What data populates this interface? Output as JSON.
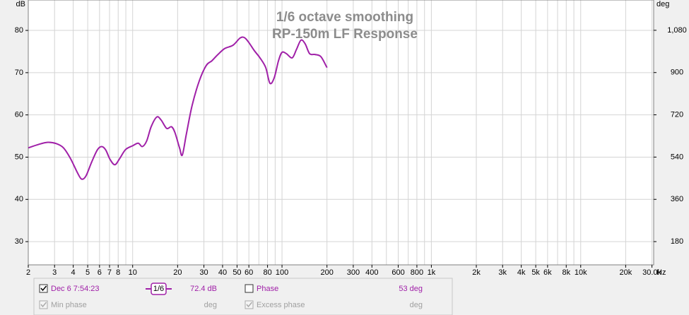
{
  "chart_data": {
    "type": "line",
    "title": "1/6 octave smoothing",
    "subtitle": "RP-150m LF Response",
    "y_unit": "dB",
    "y2_unit": "deg",
    "x_unit": "Hz",
    "log_x": true,
    "grid": true,
    "xlim": [
      2,
      30800
    ],
    "xticks": [
      2,
      3,
      4,
      5,
      6,
      7,
      8,
      10,
      20,
      30,
      40,
      50,
      60,
      80,
      100,
      200,
      300,
      400,
      600,
      800,
      {
        "value": 1000,
        "label": "1k"
      },
      {
        "value": 2000,
        "label": "2k"
      },
      {
        "value": 3000,
        "label": "3k"
      },
      {
        "value": 4000,
        "label": "4k"
      },
      {
        "value": 5000,
        "label": "5k"
      },
      {
        "value": 6000,
        "label": "6k"
      },
      {
        "value": 8000,
        "label": "8k"
      },
      {
        "value": 10000,
        "label": "10k"
      },
      {
        "value": 20000,
        "label": "20k"
      },
      {
        "value": 30000,
        "label": "30.0k"
      }
    ],
    "x_minor_grid": [
      9,
      70,
      90,
      500,
      700,
      900,
      7000,
      9000
    ],
    "ylim": [
      24.5,
      87.2
    ],
    "yticks": [
      30,
      40,
      50,
      60,
      70,
      80
    ],
    "y2lim": [
      81,
      1209
    ],
    "y2ticks": [
      180,
      360,
      540,
      720,
      900,
      {
        "value": 1080,
        "label": "1,080"
      }
    ],
    "x": [
      2,
      2.34,
      2.7,
      3.08,
      3.44,
      3.83,
      4.27,
      4.55,
      4.86,
      5.31,
      5.8,
      6.2,
      6.6,
      7.05,
      7.6,
      8.2,
      8.97,
      10,
      10.9,
      11.6,
      12.4,
      13.3,
      14.5,
      15.5,
      16.9,
      18.2,
      19.2,
      20.6,
      21.5,
      22.9,
      25,
      27.9,
      31.1,
      33.9,
      37,
      41.3,
      47,
      52.4,
      56,
      59.8,
      65.3,
      71.2,
      77.8,
      83,
      88.7,
      94.7,
      100,
      107,
      117,
      125,
      134,
      143,
      153,
      166,
      182,
      198,
      200
    ],
    "series": [
      {
        "name": "Dec 6 7:54:23",
        "color": "#a020a8",
        "values": [
          52.2,
          53.0,
          53.5,
          53.2,
          52.2,
          49.7,
          46.3,
          44.8,
          45.5,
          48.8,
          51.7,
          52.5,
          51.7,
          49.5,
          48.2,
          49.7,
          51.8,
          52.7,
          53.3,
          52.5,
          53.8,
          57.2,
          59.5,
          58.8,
          56.8,
          57.2,
          55.8,
          52.2,
          50.5,
          55.5,
          62.2,
          68.0,
          71.7,
          72.8,
          74.2,
          75.7,
          76.5,
          78.2,
          78.3,
          77.2,
          75.2,
          73.5,
          71.2,
          67.5,
          68.8,
          72.8,
          74.8,
          74.5,
          73.5,
          75.5,
          77.7,
          76.8,
          74.5,
          74.3,
          73.8,
          71.5,
          71.2
        ]
      }
    ]
  },
  "legend_panel": {
    "smoothing": "1/6",
    "value_readout": "72.4 dB",
    "phase_label": "Phase",
    "phase_readout": "53 deg",
    "min_phase": "Min phase",
    "min_phase_unit": "deg",
    "excess_phase": "Excess phase",
    "excess_phase_unit": "deg"
  }
}
